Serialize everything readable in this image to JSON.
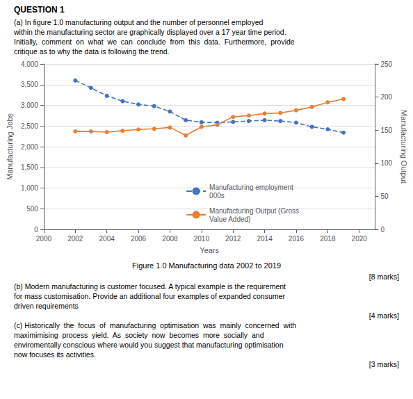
{
  "chart_data": {
    "type": "line",
    "x": [
      2002,
      2003,
      2004,
      2005,
      2006,
      2007,
      2008,
      2009,
      2010,
      2011,
      2012,
      2013,
      2014,
      2015,
      2016,
      2017,
      2018,
      2019
    ],
    "series": [
      {
        "name": "Manufacturing employment\n000s",
        "color": "#4472C4",
        "marker": "circle",
        "line_style": "dashed",
        "values": [
          3600,
          3420,
          3230,
          3100,
          3020,
          2980,
          2850,
          2640,
          2590,
          2580,
          2600,
          2620,
          2640,
          2620,
          2580,
          2480,
          2420,
          2340
        ]
      },
      {
        "name": "Manufacturing Output (Gross\nValue Added)",
        "color": "#ED7D31",
        "marker": "circle",
        "line_style": "solid",
        "axis": "y2",
        "values": [
          148,
          148,
          147,
          149,
          151,
          152,
          154,
          142,
          155,
          158,
          170,
          172,
          175,
          176,
          180,
          185,
          192,
          197
        ]
      }
    ],
    "xlabel": "Years",
    "ylabel": "Manufacturing Jobs",
    "y2label": "Manufacturing Output",
    "xlim": [
      2000,
      2021
    ],
    "xticks": [
      2000,
      2002,
      2004,
      2006,
      2008,
      2010,
      2012,
      2014,
      2016,
      2018,
      2020
    ],
    "ylim": [
      0,
      4000
    ],
    "yticks": [
      0,
      500,
      1000,
      1500,
      2000,
      2500,
      3000,
      3500,
      4000
    ],
    "y2lim": [
      0,
      250
    ],
    "y2ticks": [
      0,
      50,
      100,
      150,
      200,
      250
    ],
    "grid": true,
    "legend": "bottom",
    "annotations": [
      "QUESTION 1",
      "(a) In figure 1.0 ​manufacturing output and the ​number of personnel employed",
      "within the manufacturing sector are graphically displayed over a 17 year time period.",
      "Initially,  comment  on  what  we  can  conclude  from  this  data.  Furthermore,  provide",
      "critique as to why the data is following the trend.",
      "Figure 1.0 Manufacturing data 2002 to 2019",
      "[8 marks]",
      "(b) Modern manufacturing is customer focused. A typical example is the requirement",
      "for mass customisation. Provide an additional four examples of expanded consumer",
      "driven requirements",
      "[4 marks]",
      "(c) Historically  the  focus  of  manufacturing  optimisation  was  mainly  concerned  with",
      "maximimising  process  yield.  As  society  now  becomes  more  socially  and",
      "enviromentally conscious where would you suggest that manufacturing optimisation",
      "now focuses its activities.",
      "[3 marks]"
    ]
  }
}
